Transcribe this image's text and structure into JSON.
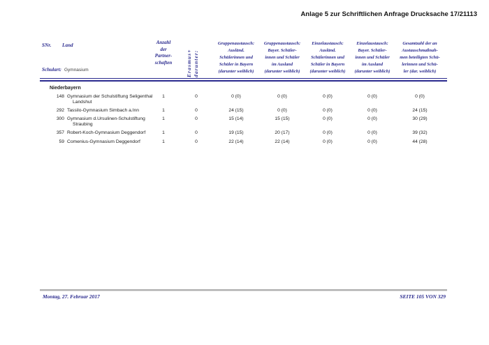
{
  "page": {
    "doc_title": "Anlage 5 zur Schriftlichen Anfrage Drucksache 17/21113",
    "footer_left": "Montag, 27. Februar 2017",
    "footer_right": "SEITE 105 VON 329",
    "colors": {
      "accent_navy": "#2a2a8e",
      "body_text": "#1d1d1d",
      "footer_rule_gray": "#aeaeae"
    }
  },
  "table": {
    "header": {
      "snr": "SNr.",
      "land": "Land",
      "schulart_label": "Schulart:",
      "schulart_value": "Gymnasium",
      "partnerschaften": "Anzahl\nder\nPartner-\nschaften",
      "erasmus_line1": "darunter:",
      "erasmus_line2": "Erasmus+",
      "col_gruppen_in_bayern": "Gruppenaustausch:\nAusländ.\nSchülerinnen und\nSchüler in Bayern\n(darunter weiblich)",
      "col_gruppen_im_ausland": "Gruppenaustausch:\nBayer. Schüler-\ninnen und Schüler\nim Ausland\n(darunter weiblich)",
      "col_einzel_in_bayern": "Einzelaustausch:\nAusländ.\nSchülerinnen und\nSchüler in Bayern\n(darunter weiblich)",
      "col_einzel_im_ausland": "Einzelaustausch:\nBayer. Schüler-\ninnen und Schüler\nim Ausland\n(darunter weiblich)",
      "col_gesamt": "Gesamtzahl der an\nAustauschmaßnah-\nmen beteiligten Schü-\nlerinnen und Schü-\nler (dar. weiblich)"
    },
    "section": "Niederbayern",
    "rows": [
      {
        "snr": "148",
        "name": "Gymnasium der Schulstiftung Seligenthal\nLandshut",
        "partnerschaften": "1",
        "erasmus": "0",
        "gruppe_in_bayern": "0 (0)",
        "gruppe_im_ausland": "0 (0)",
        "einzel_in_bayern": "0 (0)",
        "einzel_im_ausland": "0 (0)",
        "gesamt": "0 (0)"
      },
      {
        "snr": "292",
        "name": "Tassilo-Gymnasium Simbach a.Inn",
        "partnerschaften": "1",
        "erasmus": "0",
        "gruppe_in_bayern": "24 (15)",
        "gruppe_im_ausland": "0 (0)",
        "einzel_in_bayern": "0 (0)",
        "einzel_im_ausland": "0 (0)",
        "gesamt": "24 (15)"
      },
      {
        "snr": "300",
        "name": "Gymnasium d.Ursulinen-Schulstiftung\nStraubing",
        "partnerschaften": "1",
        "erasmus": "0",
        "gruppe_in_bayern": "15 (14)",
        "gruppe_im_ausland": "15 (15)",
        "einzel_in_bayern": "0 (0)",
        "einzel_im_ausland": "0 (0)",
        "gesamt": "30 (29)"
      },
      {
        "snr": "357",
        "name": "Robert-Koch-Gymnasium Deggendorf",
        "partnerschaften": "1",
        "erasmus": "0",
        "gruppe_in_bayern": "19 (15)",
        "gruppe_im_ausland": "20 (17)",
        "einzel_in_bayern": "0 (0)",
        "einzel_im_ausland": "0 (0)",
        "gesamt": "39 (32)"
      },
      {
        "snr": "59",
        "name": "Comenius-Gymnasium Deggendorf",
        "partnerschaften": "1",
        "erasmus": "0",
        "gruppe_in_bayern": "22 (14)",
        "gruppe_im_ausland": "22 (14)",
        "einzel_in_bayern": "0 (0)",
        "einzel_im_ausland": "0 (0)",
        "gesamt": "44 (28)"
      }
    ]
  }
}
